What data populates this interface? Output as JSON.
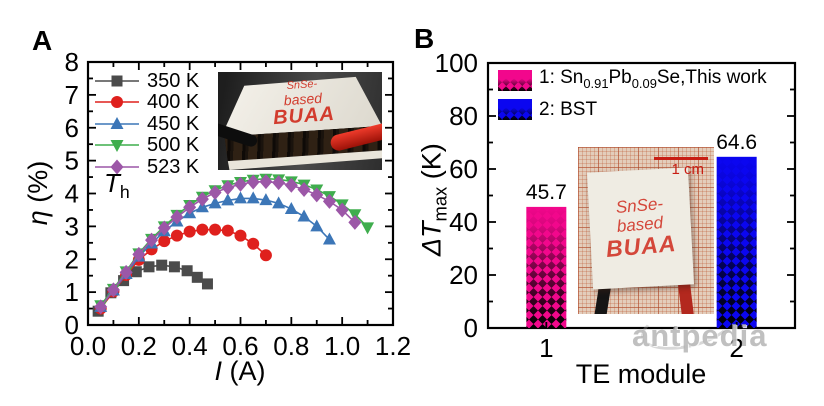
{
  "panels": {
    "a": {
      "label": "A",
      "ylabel": {
        "var": "η",
        "rest": " (%)"
      },
      "xlabel": {
        "var": "I",
        "rest": " (A)"
      },
      "annotation": {
        "var": "T",
        "sub": "h"
      },
      "inset": {
        "line1": "SnSe-",
        "line2": "based",
        "line3": "BUAA"
      }
    },
    "b": {
      "label": "B",
      "ylabel": {
        "delta": "Δ",
        "var": "T",
        "sub": "max",
        "rest": " (K)"
      },
      "xlabel": "TE module",
      "legend": {
        "row1": {
          "pre": "1: Sn",
          "sub1": "0.91",
          "mid": "Pb",
          "sub2": "0.09",
          "post": "Se,This work",
          "color": "#f2078c"
        },
        "row2": {
          "label": "2: BST",
          "color": "#0b06f0"
        }
      },
      "inset": {
        "line1": "SnSe-",
        "line2": "based",
        "line3": "BUAA",
        "scale": "1 cm"
      }
    }
  },
  "watermark": {
    "text": "antpedia"
  },
  "chart_data": [
    {
      "id": "efficiency-vs-current",
      "type": "scatter",
      "title": "",
      "xlabel": "I (A)",
      "ylabel": "η (%)",
      "xlim": [
        0,
        1.2
      ],
      "ylim": [
        0,
        8
      ],
      "grid": false,
      "legend_position": "top-left-inside",
      "legend_title": "T_h",
      "xticks": [
        0,
        0.2,
        0.4,
        0.6,
        0.8,
        1.0,
        1.2
      ],
      "xtick_labels": [
        "0.0",
        "0.2",
        "0.4",
        "0.6",
        "0.8",
        "1.0",
        "1.2"
      ],
      "xminor": [
        0.1,
        0.3,
        0.5,
        0.7,
        0.9,
        1.1
      ],
      "yticks": [
        0,
        1,
        2,
        3,
        4,
        5,
        6,
        7,
        8
      ],
      "ytick_labels": [
        "0",
        "1",
        "2",
        "3",
        "4",
        "5",
        "6",
        "7",
        "8"
      ],
      "yminor": [
        0.5,
        1.5,
        2.5,
        3.5,
        4.5,
        5.5,
        6.5,
        7.5
      ],
      "series": [
        {
          "name": "350 K",
          "marker": "square",
          "color": "#4b4b4b",
          "x": [
            0.04,
            0.09,
            0.14,
            0.19,
            0.24,
            0.29,
            0.34,
            0.39,
            0.43,
            0.47
          ],
          "y": [
            0.42,
            0.98,
            1.35,
            1.62,
            1.77,
            1.82,
            1.77,
            1.65,
            1.45,
            1.25
          ]
        },
        {
          "name": "400 K",
          "marker": "circle",
          "color": "#df201d",
          "x": [
            0.05,
            0.1,
            0.15,
            0.2,
            0.25,
            0.3,
            0.35,
            0.4,
            0.45,
            0.5,
            0.55,
            0.6,
            0.65,
            0.7
          ],
          "y": [
            0.5,
            1.02,
            1.52,
            1.98,
            2.3,
            2.55,
            2.72,
            2.84,
            2.9,
            2.9,
            2.87,
            2.72,
            2.47,
            2.12
          ]
        },
        {
          "name": "450 K",
          "marker": "triangle-up",
          "color": "#3c76b7",
          "x": [
            0.05,
            0.1,
            0.15,
            0.2,
            0.25,
            0.3,
            0.35,
            0.4,
            0.45,
            0.5,
            0.55,
            0.6,
            0.65,
            0.7,
            0.75,
            0.8,
            0.85,
            0.9,
            0.95
          ],
          "y": [
            0.55,
            1.05,
            1.55,
            2.08,
            2.48,
            2.85,
            3.15,
            3.4,
            3.58,
            3.7,
            3.79,
            3.85,
            3.85,
            3.8,
            3.7,
            3.53,
            3.3,
            3.0,
            2.6
          ]
        },
        {
          "name": "500 K",
          "marker": "triangle-down",
          "color": "#3fad4d",
          "x": [
            0.05,
            0.1,
            0.15,
            0.2,
            0.25,
            0.3,
            0.35,
            0.4,
            0.45,
            0.5,
            0.55,
            0.6,
            0.65,
            0.7,
            0.75,
            0.8,
            0.85,
            0.9,
            0.95,
            1.0,
            1.05,
            1.1
          ],
          "y": [
            0.6,
            1.1,
            1.63,
            2.18,
            2.62,
            3.0,
            3.35,
            3.65,
            3.9,
            4.1,
            4.25,
            4.35,
            4.42,
            4.45,
            4.43,
            4.37,
            4.27,
            4.12,
            3.92,
            3.67,
            3.37,
            2.97
          ]
        },
        {
          "name": "523 K",
          "marker": "diamond",
          "color": "#9c57a7",
          "x": [
            0.05,
            0.1,
            0.15,
            0.2,
            0.25,
            0.3,
            0.35,
            0.4,
            0.45,
            0.5,
            0.55,
            0.6,
            0.65,
            0.7,
            0.75,
            0.8,
            0.85,
            0.9,
            0.95,
            1.0,
            1.05
          ],
          "y": [
            0.55,
            1.07,
            1.6,
            2.15,
            2.58,
            2.95,
            3.28,
            3.58,
            3.83,
            4.03,
            4.18,
            4.28,
            4.35,
            4.36,
            4.33,
            4.25,
            4.12,
            3.96,
            3.76,
            3.5,
            3.12
          ]
        }
      ]
    },
    {
      "id": "dtmax-comparison",
      "type": "bar",
      "title": "",
      "xlabel": "TE module",
      "ylabel": "ΔT_max (K)",
      "ylim": [
        0,
        100
      ],
      "grid": false,
      "legend_position": "top-left-inside",
      "categories": [
        "1",
        "2"
      ],
      "values": [
        45.7,
        64.6
      ],
      "value_labels": [
        "45.7",
        "64.6"
      ],
      "bar_colors": [
        "#f2078c",
        "#0b06f0"
      ],
      "yticks": [
        0,
        20,
        40,
        60,
        80,
        100
      ],
      "ytick_labels": [
        "0",
        "20",
        "40",
        "60",
        "80",
        "100"
      ],
      "yminor": [
        10,
        30,
        50,
        70,
        90
      ],
      "legend": [
        "1: Sn0.91Pb0.09Se,This work",
        "2: BST"
      ]
    }
  ]
}
